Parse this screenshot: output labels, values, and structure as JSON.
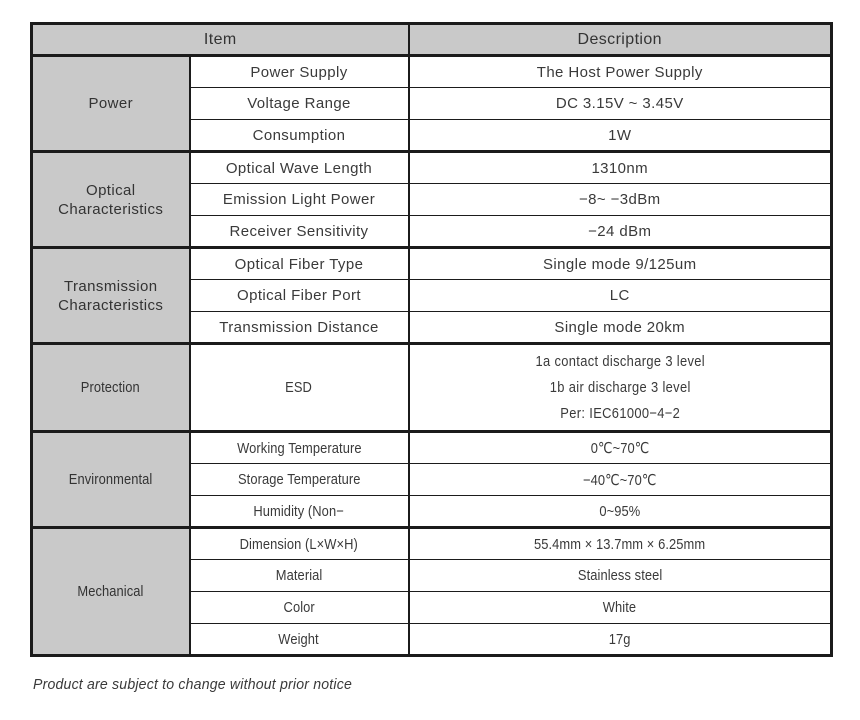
{
  "colors": {
    "header_bg": "#c9c9c9",
    "group_cell_bg": "#c9c9c9",
    "border": "#1b1b1b",
    "text": "#3a3a3a"
  },
  "header": {
    "item": "Item",
    "description": "Description"
  },
  "table": {
    "groups": [
      {
        "label": "Power",
        "rows": [
          {
            "item": "Power Supply",
            "desc": "The Host Power Supply"
          },
          {
            "item": "Voltage Range",
            "desc": "DC 3.15V ~ 3.45V"
          },
          {
            "item": "Consumption",
            "desc": "1W"
          }
        ]
      },
      {
        "label": "Optical Characteristics",
        "rows": [
          {
            "item": "Optical Wave Length",
            "desc": "1310nm"
          },
          {
            "item": "Emission Light Power",
            "desc": "−8~ −3dBm"
          },
          {
            "item": "Receiver Sensitivity",
            "desc": "−24 dBm"
          }
        ]
      },
      {
        "label": "Transmission Characteristics",
        "rows": [
          {
            "item": "Optical Fiber Type",
            "desc": "Single mode 9/125um"
          },
          {
            "item": "Optical Fiber Port",
            "desc": "LC"
          },
          {
            "item": "Transmission Distance",
            "desc": "Single mode 20km"
          }
        ]
      },
      {
        "label": "Protection",
        "rows": [
          {
            "item": "ESD",
            "desc_lines": [
              "1a contact discharge 3 level",
              "1b air discharge 3 level",
              "Per: IEC61000−4−2"
            ]
          }
        ]
      },
      {
        "label": "Environmental",
        "rows": [
          {
            "item": "Working Temperature",
            "desc": "0℃~70℃"
          },
          {
            "item": "Storage Temperature",
            "desc": "−40℃~70℃"
          },
          {
            "item": "Humidity (Non−",
            "desc": "0~95%"
          }
        ]
      },
      {
        "label": "Mechanical",
        "rows": [
          {
            "item": "Dimension (L×W×H)",
            "desc": "55.4mm × 13.7mm × 6.25mm"
          },
          {
            "item": "Material",
            "desc": "Stainless steel"
          },
          {
            "item": "Color",
            "desc": "White"
          },
          {
            "item": "Weight",
            "desc": "17g"
          }
        ]
      }
    ]
  },
  "footer": {
    "note": "Product are subject to change without prior notice"
  }
}
